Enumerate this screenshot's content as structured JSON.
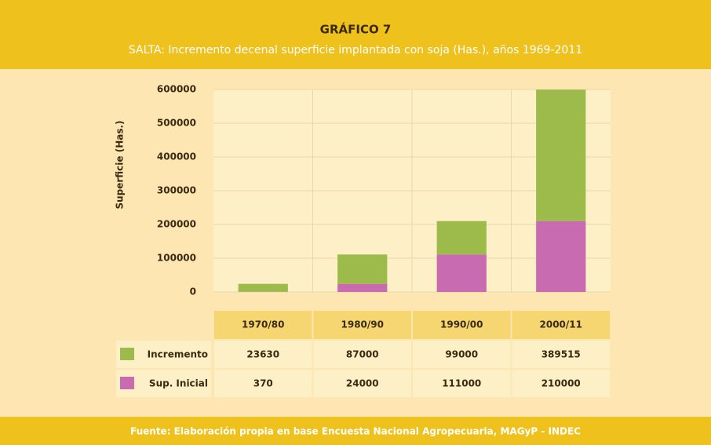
{
  "chart_data": {
    "type": "bar",
    "stacked": true,
    "title": "GRÁFICO 7",
    "subtitle": "SALTA: Incremento decenal superficie implantada con soja (Has.), años 1969-2011",
    "y_label": "Superficie (Has.)",
    "source": "Fuente: Elaboración propia en base Encuesta Nacional Agropecuaria, MAGyP - INDEC",
    "categories": [
      "1970/80",
      "1980/90",
      "1990/00",
      "2000/11"
    ],
    "series": [
      {
        "name": "Incremento",
        "color": "#9dbb4b",
        "values": [
          23630,
          87000,
          99000,
          389515
        ]
      },
      {
        "name": "Sup. Inicial",
        "color": "#c96bb0",
        "values": [
          370,
          24000,
          111000,
          210000
        ]
      }
    ],
    "ylim": [
      0,
      600000
    ],
    "yticks": [
      0,
      100000,
      200000,
      300000,
      400000,
      500000,
      600000
    ],
    "grid": true
  }
}
